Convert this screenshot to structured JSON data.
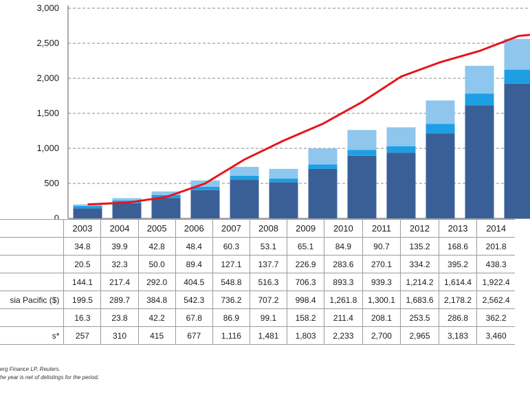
{
  "chart_data": {
    "type": "bar",
    "stacked": true,
    "categories": [
      "2003",
      "2004",
      "2005",
      "2006",
      "2007",
      "2008",
      "2009",
      "2010",
      "2011",
      "2012",
      "2013",
      "2014"
    ],
    "series": [
      {
        "name": "",
        "color": "#3a5f97",
        "values": [
          144.1,
          217.4,
          292.0,
          404.5,
          548.8,
          516.3,
          706.3,
          893.3,
          939.3,
          1214.2,
          1614.4,
          1922.4
        ]
      },
      {
        "name": "",
        "color": "#1f9fe3",
        "values": [
          34.8,
          39.9,
          42.8,
          48.4,
          60.3,
          53.1,
          65.1,
          84.9,
          90.7,
          135.2,
          168.6,
          201.8
        ]
      },
      {
        "name": "",
        "color": "#8ec6ee",
        "values": [
          20.5,
          32.3,
          50.0,
          89.4,
          127.1,
          137.7,
          226.9,
          283.6,
          270.1,
          334.2,
          395.2,
          438.3
        ]
      }
    ],
    "line_series": {
      "name": "",
      "color": "#e8141b",
      "values": [
        257,
        310,
        415,
        677,
        1116,
        1481,
        1803,
        2233,
        2700,
        2965,
        3183,
        3460
      ]
    },
    "ylim": [
      0,
      3000
    ],
    "yticks": [
      "0",
      "500",
      "1,000",
      "1,500",
      "2,000",
      "2,500",
      "3,000"
    ],
    "grid": true
  },
  "table": {
    "rows": [
      {
        "label": "",
        "values": [
          "34.8",
          "39.9",
          "42.8",
          "48.4",
          "60.3",
          "53.1",
          "65.1",
          "84.9",
          "90.7",
          "135.2",
          "168.6",
          "201.8"
        ]
      },
      {
        "label": "",
        "values": [
          "20.5",
          "32.3",
          "50.0",
          "89.4",
          "127.1",
          "137.7",
          "226.9",
          "283.6",
          "270.1",
          "334.2",
          "395.2",
          "438.3"
        ]
      },
      {
        "label": "",
        "values": [
          "144.1",
          "217.4",
          "292.0",
          "404.5",
          "548.8",
          "516.3",
          "706.3",
          "893.3",
          "939.3",
          "1,214.2",
          "1,614.4",
          "1,922.4"
        ]
      },
      {
        "label": "sia Pacific ($)",
        "values": [
          "199.5",
          "289.7",
          "384.8",
          "542.3",
          "736.2",
          "707.2",
          "998.4",
          "1,261.8",
          "1,300.1",
          "1,683.6",
          "2,178.2",
          "2,562.4"
        ]
      },
      {
        "label": "",
        "values": [
          "16.3",
          "23.8",
          "42.2",
          "67.8",
          "86.9",
          "99.1",
          "158.2",
          "211.4",
          "208.1",
          "253.5",
          "286.8",
          "362.2"
        ]
      },
      {
        "label": "s*",
        "values": [
          "257",
          "310",
          "415",
          "677",
          "1,116",
          "1,481",
          "1,803",
          "2,233",
          "2,700",
          "2,965",
          "3,183",
          "3,460"
        ]
      }
    ]
  },
  "notes": [
    "erg Finance LP, Reuters.",
    "he year is net of delistings for the period."
  ]
}
